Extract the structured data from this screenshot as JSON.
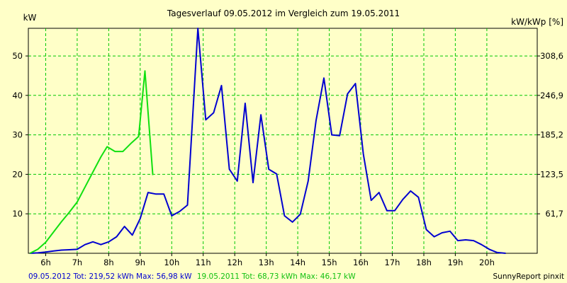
{
  "chart_data": {
    "type": "line",
    "title": "Tagesverlauf 09.05.2012 im Vergleich zum 19.05.2011",
    "ylabel_left": "kW",
    "ylabel_right": "kW/kWp [%]",
    "xlim": [
      5.45,
      21.6
    ],
    "ylim": [
      0,
      57
    ],
    "grid": true,
    "x_ticks": [
      {
        "v": 6,
        "label": "6h"
      },
      {
        "v": 7,
        "label": "7h"
      },
      {
        "v": 8,
        "label": "8h"
      },
      {
        "v": 9,
        "label": "9h"
      },
      {
        "v": 10,
        "label": "10h"
      },
      {
        "v": 11,
        "label": "11h"
      },
      {
        "v": 12,
        "label": "12h"
      },
      {
        "v": 13,
        "label": "13h"
      },
      {
        "v": 14,
        "label": "14h"
      },
      {
        "v": 15,
        "label": "15h"
      },
      {
        "v": 16,
        "label": "16h"
      },
      {
        "v": 17,
        "label": "17h"
      },
      {
        "v": 18,
        "label": "18h"
      },
      {
        "v": 19,
        "label": "19h"
      },
      {
        "v": 20,
        "label": "20h"
      }
    ],
    "y_ticks_left": [
      {
        "v": 10,
        "label": "10"
      },
      {
        "v": 20,
        "label": "20"
      },
      {
        "v": 30,
        "label": "30"
      },
      {
        "v": 40,
        "label": "40"
      },
      {
        "v": 50,
        "label": "50"
      }
    ],
    "y_ticks_right": [
      {
        "v": 10,
        "label": "61,7"
      },
      {
        "v": 20,
        "label": "123,5"
      },
      {
        "v": 30,
        "label": "185,2"
      },
      {
        "v": 40,
        "label": "246,9"
      },
      {
        "v": 50,
        "label": "308,6"
      }
    ],
    "series": [
      {
        "color": "#0000d0",
        "points": [
          [
            5.5,
            0
          ],
          [
            5.75,
            0.1
          ],
          [
            6.0,
            0.3
          ],
          [
            6.25,
            0.6
          ],
          [
            6.5,
            0.8
          ],
          [
            6.75,
            0.9
          ],
          [
            7.0,
            1.0
          ],
          [
            7.25,
            2.2
          ],
          [
            7.5,
            2.9
          ],
          [
            7.75,
            2.2
          ],
          [
            8.0,
            2.9
          ],
          [
            8.25,
            4.2
          ],
          [
            8.5,
            6.8
          ],
          [
            8.75,
            4.6
          ],
          [
            9.0,
            8.8
          ],
          [
            9.25,
            15.4
          ],
          [
            9.5,
            15.0
          ],
          [
            9.75,
            15.0
          ],
          [
            10.0,
            9.5
          ],
          [
            10.25,
            10.6
          ],
          [
            10.5,
            12.2
          ],
          [
            10.83,
            57.0
          ],
          [
            11.08,
            33.8
          ],
          [
            11.33,
            35.6
          ],
          [
            11.58,
            42.5
          ],
          [
            11.83,
            21.3
          ],
          [
            12.08,
            18.3
          ],
          [
            12.33,
            38.0
          ],
          [
            12.58,
            17.9
          ],
          [
            12.83,
            35.1
          ],
          [
            13.08,
            21.3
          ],
          [
            13.33,
            20.1
          ],
          [
            13.58,
            9.5
          ],
          [
            13.83,
            7.9
          ],
          [
            14.08,
            9.9
          ],
          [
            14.33,
            18.3
          ],
          [
            14.58,
            33.6
          ],
          [
            14.83,
            44.4
          ],
          [
            15.08,
            30.0
          ],
          [
            15.33,
            29.8
          ],
          [
            15.58,
            40.4
          ],
          [
            15.83,
            43.0
          ],
          [
            16.08,
            25.2
          ],
          [
            16.33,
            13.4
          ],
          [
            16.58,
            15.4
          ],
          [
            16.83,
            10.8
          ],
          [
            17.08,
            10.8
          ],
          [
            17.33,
            13.6
          ],
          [
            17.58,
            15.8
          ],
          [
            17.83,
            14.2
          ],
          [
            18.08,
            6.0
          ],
          [
            18.33,
            4.2
          ],
          [
            18.58,
            5.2
          ],
          [
            18.83,
            5.6
          ],
          [
            19.08,
            3.2
          ],
          [
            19.33,
            3.4
          ],
          [
            19.58,
            3.2
          ],
          [
            19.83,
            2.2
          ],
          [
            20.08,
            1.0
          ],
          [
            20.33,
            0.2
          ],
          [
            20.6,
            0
          ]
        ]
      },
      {
        "color": "#10e010",
        "points": [
          [
            5.5,
            0
          ],
          [
            5.75,
            1.0
          ],
          [
            6.0,
            2.8
          ],
          [
            6.25,
            5.4
          ],
          [
            6.5,
            8.0
          ],
          [
            6.75,
            10.4
          ],
          [
            7.0,
            13.0
          ],
          [
            7.25,
            16.8
          ],
          [
            7.5,
            20.6
          ],
          [
            7.75,
            24.4
          ],
          [
            7.95,
            27.0
          ],
          [
            8.2,
            25.8
          ],
          [
            8.45,
            25.8
          ],
          [
            8.7,
            27.8
          ],
          [
            8.95,
            29.6
          ],
          [
            9.15,
            46.2
          ],
          [
            9.4,
            19.8
          ]
        ]
      }
    ],
    "footer": [
      {
        "text": "09.05.2012 Tot: 219,52 kWh Max: 56,98 kW",
        "color": "#0000d0"
      },
      {
        "text": "19.05.2011 Tot: 68,73 kWh Max: 46,17 kW",
        "color": "#10c010"
      }
    ],
    "credit": "SunnyReport pinxit"
  }
}
